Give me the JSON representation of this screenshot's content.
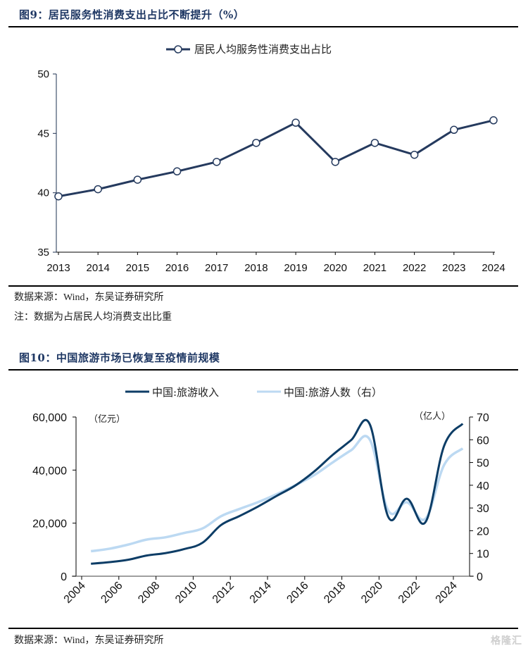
{
  "figure9": {
    "title": "图9：居民服务性消费支出占比不断提升（%）",
    "source": "数据来源：Wind，东吴证券研究所",
    "note": "注：数据为占居民人均消费支出比重"
  },
  "figure10": {
    "title": "图10：中国旅游市场已恢复至疫情前规模",
    "source": "数据来源：Wind，东吴证券研究所"
  },
  "watermark": "格隆汇",
  "chart_data": [
    {
      "type": "line",
      "title": "居民服务性消费支出占比不断提升（%）",
      "xlabel": "",
      "ylabel": "",
      "ylim": [
        35,
        50
      ],
      "yticks": [
        "35",
        "40",
        "45",
        "50"
      ],
      "categories": [
        "2013",
        "2014",
        "2015",
        "2016",
        "2017",
        "2018",
        "2019",
        "2020",
        "2021",
        "2022",
        "2023",
        "2024"
      ],
      "legend_position": "top-center",
      "grid": false,
      "series": [
        {
          "name": "居民人均服务性消费支出占比",
          "color": "#253a5e",
          "marker": "circle-open",
          "values": [
            39.7,
            40.3,
            41.1,
            41.8,
            42.6,
            44.2,
            45.9,
            42.6,
            44.2,
            43.2,
            45.3,
            46.1
          ]
        }
      ]
    },
    {
      "type": "line",
      "title": "中国旅游市场已恢复至疫情前规模",
      "xlabel": "",
      "ylabel_left": "（亿元）",
      "ylabel_right": "（亿人）",
      "ylim_left": [
        0,
        60000
      ],
      "ylim_right": [
        0,
        70
      ],
      "yticks_left": [
        "0",
        "20,000",
        "40,000",
        "60,000"
      ],
      "yticks_right": [
        "0",
        "10",
        "20",
        "30",
        "40",
        "50",
        "60",
        "70"
      ],
      "xticks": [
        "2004",
        "2006",
        "2008",
        "2010",
        "2012",
        "2014",
        "2016",
        "2018",
        "2020",
        "2022",
        "2024"
      ],
      "xlim": [
        2004,
        2024.9
      ],
      "legend_position": "top-center",
      "grid": false,
      "x": [
        2004.5,
        2005.5,
        2006.5,
        2007.5,
        2008.5,
        2009.5,
        2010.5,
        2011.5,
        2012.5,
        2013.5,
        2014.5,
        2015.5,
        2016.5,
        2017.5,
        2018.5,
        2019.5,
        2020.5,
        2021.5,
        2022.5,
        2023.5,
        2024.5
      ],
      "series": [
        {
          "name": "中国:旅游收入",
          "axis": "left",
          "color": "#0d3d66",
          "values": [
            4700,
            5300,
            6200,
            7800,
            8700,
            10200,
            12600,
            19300,
            22700,
            26300,
            30300,
            34200,
            39400,
            45700,
            51300,
            57300,
            22300,
            29200,
            20400,
            49100,
            57500
          ]
        },
        {
          "name": "中国:旅游人数（右）",
          "axis": "right",
          "color": "#bcd9f2",
          "values": [
            11.0,
            12.1,
            13.9,
            16.1,
            17.1,
            19.0,
            21.0,
            26.4,
            29.6,
            32.6,
            36.1,
            40.0,
            44.4,
            50.0,
            55.4,
            60.1,
            28.8,
            32.5,
            25.3,
            48.9,
            56.2
          ]
        }
      ]
    }
  ]
}
